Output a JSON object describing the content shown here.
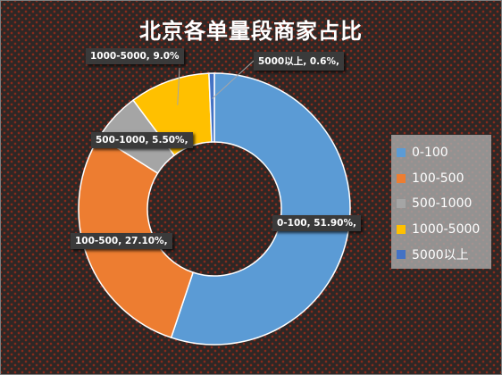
{
  "chart_data": {
    "type": "pie",
    "variant": "donut",
    "title": "北京各单量段商家占比",
    "categories": [
      "0-100",
      "100-500",
      "500-1000",
      "1000-5000",
      "5000以上"
    ],
    "values": [
      51.9,
      27.1,
      5.5,
      9.0,
      0.6
    ],
    "value_unit": "%",
    "colors": [
      "#5b9bd5",
      "#ed7d31",
      "#a5a5a5",
      "#ffc000",
      "#4472c4"
    ],
    "data_labels": [
      "0-100, 51.90%,",
      "100-500, 27.10%,",
      "500-1000, 5.50%,",
      "1000-5000, 9.0%",
      "5000以上, 0.6%,"
    ],
    "legend_position": "right"
  }
}
